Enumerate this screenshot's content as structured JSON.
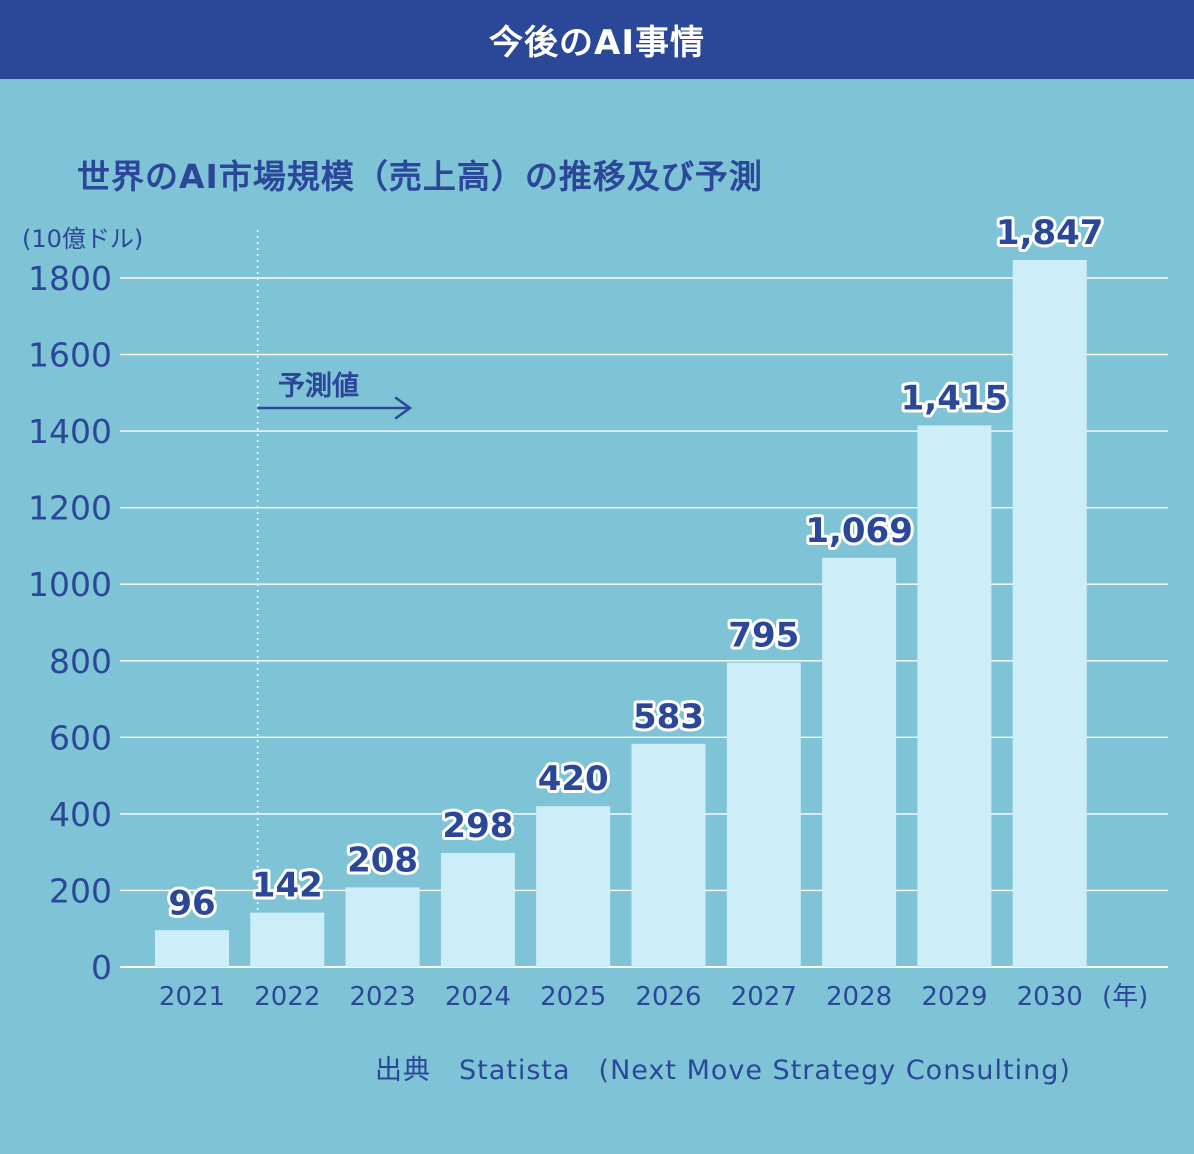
{
  "header": {
    "title": "今後のAI事情"
  },
  "chart_data": {
    "type": "bar",
    "title": "世界のAI市場規模（売上高）の推移及び予測",
    "ylabel": "(10億ドル)",
    "xlabel": "(年)",
    "ylim": [
      0,
      1800
    ],
    "yticks": [
      0,
      200,
      400,
      600,
      800,
      1000,
      1200,
      1400,
      1600,
      1800
    ],
    "grid": true,
    "categories": [
      "2021",
      "2022",
      "2023",
      "2024",
      "2025",
      "2026",
      "2027",
      "2028",
      "2029",
      "2030"
    ],
    "values": [
      96,
      142,
      208,
      298,
      420,
      583,
      795,
      1069,
      1415,
      1847
    ],
    "value_labels": [
      "96",
      "142",
      "208",
      "298",
      "420",
      "583",
      "795",
      "1,069",
      "1,415",
      "1,847"
    ],
    "forecast": {
      "label": "予測値",
      "starts_at": "2022"
    },
    "colors": {
      "bar": "#cdeef8",
      "text": "#2b4898",
      "background": "#7fc3d6",
      "grid": "#ffffff"
    }
  },
  "source": "出典　Statista　(Next Move Strategy Consulting)"
}
